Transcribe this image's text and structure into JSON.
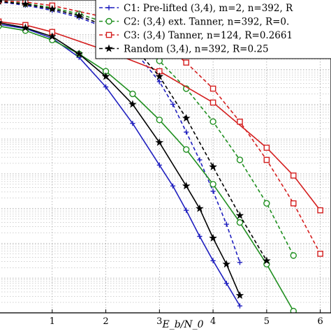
{
  "chart_data": {
    "type": "line",
    "title": "",
    "xlabel": "E_b/N_0",
    "ylabel": "",
    "xlim": [
      0,
      6.2
    ],
    "ylim": [
      -9,
      0
    ],
    "y_scale": "log",
    "x_ticks": [
      "1",
      "2",
      "3",
      "4",
      "5",
      "6"
    ],
    "grid": true,
    "legend_position": "top-right",
    "legend_note": "The series names were cut off at the chart's right edge.",
    "series": [
      {
        "name": "C1: Pre-lifted (3,4), m=2, n=392, R",
        "color": "#1f1fbf",
        "marker": "plus",
        "points": [
          [
            0,
            -0.7
          ],
          [
            0.5,
            -0.82
          ],
          [
            1,
            -1.1
          ],
          [
            1.5,
            -1.65
          ],
          [
            2,
            -2.5
          ],
          [
            2.5,
            -3.55
          ],
          [
            3,
            -4.75
          ],
          [
            3.25,
            -5.35
          ],
          [
            3.5,
            -6.05
          ],
          [
            3.75,
            -6.8
          ],
          [
            4,
            -7.5
          ],
          [
            4.25,
            -8.15
          ],
          [
            4.5,
            -8.8
          ]
        ]
      },
      {
        "name": "",
        "color": "#1f1fbf",
        "dashed": true,
        "marker": "plus",
        "points": [
          [
            0,
            -0.05
          ],
          [
            0.5,
            -0.15
          ],
          [
            1,
            -0.3
          ],
          [
            1.5,
            -0.5
          ],
          [
            2,
            -0.8
          ],
          [
            2.5,
            -1.4
          ],
          [
            3,
            -2.35
          ],
          [
            3.25,
            -3.0
          ],
          [
            3.5,
            -3.8
          ],
          [
            3.75,
            -4.6
          ],
          [
            4,
            -5.5
          ],
          [
            4.25,
            -6.45
          ],
          [
            4.5,
            -7.55
          ]
        ]
      },
      {
        "name": "C2: (3,4) ext. Tanner, n=392, R=0.",
        "color": "#1f8f1f",
        "marker": "circle",
        "points": [
          [
            0,
            -0.75
          ],
          [
            0.5,
            -0.88
          ],
          [
            1,
            -1.15
          ],
          [
            1.5,
            -1.55
          ],
          [
            2,
            -2.05
          ],
          [
            2.5,
            -2.7
          ],
          [
            3,
            -3.45
          ],
          [
            3.5,
            -4.3
          ],
          [
            4,
            -5.3
          ],
          [
            4.5,
            -6.4
          ],
          [
            5,
            -7.6
          ],
          [
            5.5,
            -8.95
          ]
        ]
      },
      {
        "name": "",
        "color": "#1f8f1f",
        "dashed": true,
        "marker": "circle",
        "points": [
          [
            0,
            -0.03
          ],
          [
            0.5,
            -0.1
          ],
          [
            1,
            -0.22
          ],
          [
            1.5,
            -0.4
          ],
          [
            2,
            -0.65
          ],
          [
            2.5,
            -1.1
          ],
          [
            3,
            -1.75
          ],
          [
            3.5,
            -2.55
          ],
          [
            4,
            -3.5
          ],
          [
            4.5,
            -4.6
          ],
          [
            5,
            -5.85
          ],
          [
            5.5,
            -7.35
          ]
        ]
      },
      {
        "name": "C3: (3,4) Tanner, n=124, R=0.2661",
        "color": "#d41f1f",
        "marker": "square",
        "points": [
          [
            0,
            -0.62
          ],
          [
            0.5,
            -0.72
          ],
          [
            1,
            -0.92
          ],
          [
            2,
            -1.45
          ],
          [
            3,
            -2.05
          ],
          [
            4,
            -2.95
          ],
          [
            5,
            -4.25
          ],
          [
            5.5,
            -5.05
          ],
          [
            6,
            -6.05
          ]
        ]
      },
      {
        "name": "",
        "color": "#d41f1f",
        "dashed": true,
        "marker": "square",
        "points": [
          [
            0,
            -0.02
          ],
          [
            0.5,
            -0.06
          ],
          [
            1,
            -0.16
          ],
          [
            2,
            -0.5
          ],
          [
            3,
            -1.2
          ],
          [
            3.5,
            -1.8
          ],
          [
            4,
            -2.55
          ],
          [
            4.5,
            -3.5
          ],
          [
            5,
            -4.6
          ],
          [
            5.5,
            -5.85
          ],
          [
            6,
            -7.3
          ]
        ]
      },
      {
        "name": "Random (3,4), n=392, R=0.25",
        "color": "#000000",
        "marker": "star",
        "points": [
          [
            0,
            -0.65
          ],
          [
            0.5,
            -0.8
          ],
          [
            1,
            -1.05
          ],
          [
            1.5,
            -1.55
          ],
          [
            2,
            -2.2
          ],
          [
            2.5,
            -3.0
          ],
          [
            3,
            -4.1
          ],
          [
            3.5,
            -5.35
          ],
          [
            3.75,
            -6.0
          ],
          [
            4,
            -6.85
          ],
          [
            4.25,
            -7.6
          ],
          [
            4.5,
            -8.5
          ]
        ]
      },
      {
        "name": "",
        "color": "#000000",
        "dashed": true,
        "marker": "star",
        "points": [
          [
            0,
            -0.04
          ],
          [
            0.5,
            -0.12
          ],
          [
            1,
            -0.26
          ],
          [
            1.5,
            -0.45
          ],
          [
            2,
            -0.75
          ],
          [
            2.5,
            -1.3
          ],
          [
            3,
            -2.2
          ],
          [
            3.5,
            -3.4
          ],
          [
            4,
            -4.8
          ],
          [
            4.5,
            -6.2
          ],
          [
            5,
            -7.5
          ]
        ]
      }
    ],
    "legend": [
      {
        "label": "C1: Pre-lifted (3,4), m=2, n=392, R",
        "color": "#1f1fbf",
        "marker": "plus"
      },
      {
        "label": "C2: (3,4) ext. Tanner, n=392, R=0.",
        "color": "#1f8f1f",
        "marker": "circle"
      },
      {
        "label": "C3: (3,4) Tanner, n=124, R=0.2661",
        "color": "#d41f1f",
        "marker": "square"
      },
      {
        "label": "Random (3,4), n=392, R=0.25",
        "color": "#000000",
        "marker": "star"
      }
    ]
  }
}
